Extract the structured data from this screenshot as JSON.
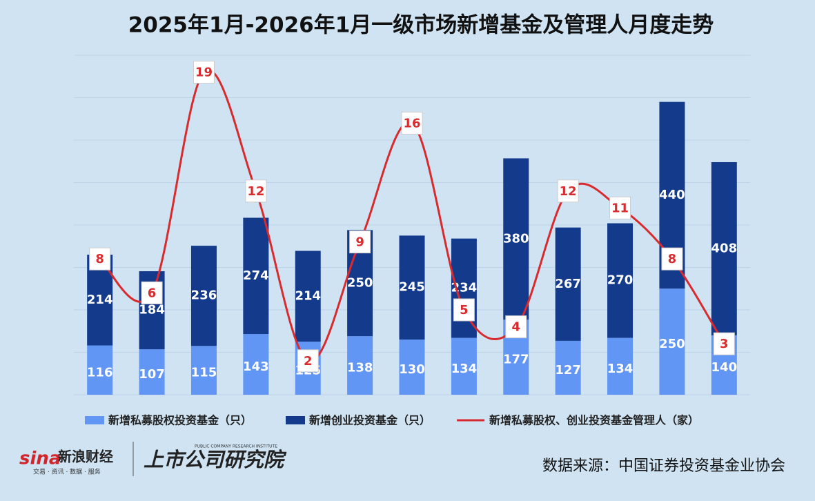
{
  "chart_data": {
    "type": "bar",
    "stacked": true,
    "title": "2025年1月-2026年1月一级市场新增基金及管理人月度走势",
    "categories": [
      null,
      null,
      null,
      null,
      null,
      null,
      null,
      null,
      null,
      null,
      null,
      null,
      null
    ],
    "series": [
      {
        "name": "新增私募股权投资基金（只）",
        "color": "#6196f4",
        "values": [
          116,
          107,
          115,
          143,
          125,
          138,
          130,
          134,
          177,
          127,
          134,
          250,
          140
        ]
      },
      {
        "name": "新增创业投资基金（只）",
        "color": "#143a8c",
        "values": [
          214,
          184,
          236,
          274,
          214,
          250,
          245,
          234,
          380,
          267,
          270,
          440,
          408
        ]
      },
      {
        "name": "新增私募股权、创业投资基金管理人（家）",
        "color": "#d92a2e",
        "axis": "y2",
        "values": [
          8,
          6,
          19,
          12,
          2,
          9,
          16,
          5,
          4,
          12,
          11,
          8,
          3
        ]
      }
    ],
    "ylim": [
      0,
      800
    ],
    "yticks": [
      0,
      100,
      200,
      300,
      400,
      500,
      600,
      700,
      800
    ],
    "y2lim": [
      0,
      20
    ],
    "grid": true,
    "legend": "bottom"
  },
  "footer": {
    "sina": "sina",
    "brand": "新浪财经",
    "brand_sub": "交易 · 资讯 · 数据 · 服务",
    "institute_en": "PUBLIC COMPANY RESEARCH INSTITUTE",
    "institute": "上市公司研究院",
    "source": "数据来源：中国证券投资基金业协会"
  }
}
